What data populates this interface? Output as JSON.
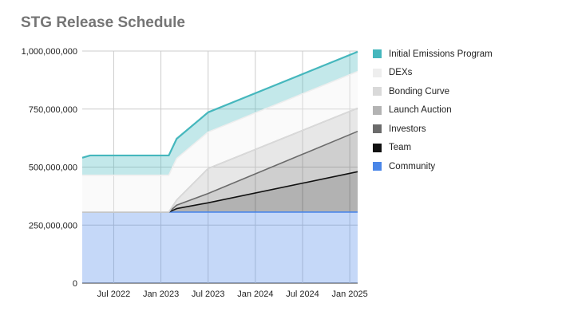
{
  "chart_data": {
    "type": "area",
    "title": "STG Release Schedule",
    "xlabel": "",
    "ylabel": "",
    "x_ticks": [
      "Jul 2022",
      "Jan 2023",
      "Jul 2023",
      "Jan 2024",
      "Jul 2024",
      "Jan 2025"
    ],
    "x": [
      "2022-03",
      "2022-04",
      "2023-01",
      "2023-02",
      "2023-03",
      "2023-07",
      "2025-02"
    ],
    "ylim": [
      0,
      1000000000
    ],
    "y_ticks": [
      "0",
      "250,000,000",
      "500,000,000",
      "750,000,000",
      "1,000,000,000"
    ],
    "grid": true,
    "legend_position": "right",
    "stacked": true,
    "series": [
      {
        "name": "Community",
        "color": "#4a86e8",
        "values": [
          306000000,
          306000000,
          306000000,
          306000000,
          306000000,
          306000000,
          306000000
        ]
      },
      {
        "name": "Team",
        "color": "#111111",
        "values": [
          0,
          0,
          0,
          0,
          15000000,
          40000000,
          174000000
        ]
      },
      {
        "name": "Investors",
        "color": "#6b6b6b",
        "values": [
          0,
          0,
          0,
          0,
          15000000,
          40000000,
          174000000
        ]
      },
      {
        "name": "Launch Auction",
        "color": "#b3b3b3",
        "values": [
          0,
          0,
          0,
          0,
          22000000,
          108000000,
          100000000
        ]
      },
      {
        "name": "Bonding Curve",
        "color": "#d9d9d9",
        "values": [
          0,
          0,
          0,
          0,
          0,
          0,
          0
        ]
      },
      {
        "name": "DEXs",
        "color": "#eeeeee",
        "values": [
          159000000,
          159000000,
          159000000,
          159000000,
          179000000,
          157000000,
          158000000
        ]
      },
      {
        "name": "Initial Emissions Program",
        "color": "#45b7bd",
        "values": [
          75000000,
          85000000,
          85000000,
          85000000,
          85000000,
          85000000,
          85000000
        ]
      }
    ]
  }
}
